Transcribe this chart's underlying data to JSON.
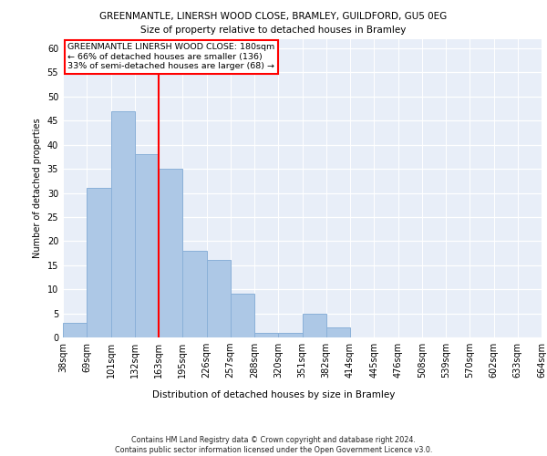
{
  "title1": "GREENMANTLE, LINERSH WOOD CLOSE, BRAMLEY, GUILDFORD, GU5 0EG",
  "title2": "Size of property relative to detached houses in Bramley",
  "xlabel": "Distribution of detached houses by size in Bramley",
  "ylabel": "Number of detached properties",
  "bar_values": [
    3,
    31,
    47,
    38,
    35,
    18,
    16,
    9,
    1,
    1,
    5,
    2,
    0,
    0,
    0,
    0,
    0,
    0,
    0,
    0
  ],
  "bin_labels": [
    "38sqm",
    "69sqm",
    "101sqm",
    "132sqm",
    "163sqm",
    "195sqm",
    "226sqm",
    "257sqm",
    "288sqm",
    "320sqm",
    "351sqm",
    "382sqm",
    "414sqm",
    "445sqm",
    "476sqm",
    "508sqm",
    "539sqm",
    "570sqm",
    "602sqm",
    "633sqm",
    "664sqm"
  ],
  "bar_color": "#adc8e6",
  "bar_edge_color": "#8ab0d8",
  "vline_color": "red",
  "vline_x": 4,
  "annotation_text": "GREENMANTLE LINERSH WOOD CLOSE: 180sqm\n← 66% of detached houses are smaller (136)\n33% of semi-detached houses are larger (68) →",
  "annotation_box_color": "white",
  "annotation_box_edge_color": "red",
  "ylim": [
    0,
    62
  ],
  "yticks": [
    0,
    5,
    10,
    15,
    20,
    25,
    30,
    35,
    40,
    45,
    50,
    55,
    60
  ],
  "background_color": "#e8eef8",
  "footer_line1": "Contains HM Land Registry data © Crown copyright and database right 2024.",
  "footer_line2": "Contains public sector information licensed under the Open Government Licence v3.0."
}
